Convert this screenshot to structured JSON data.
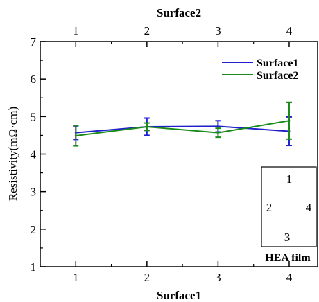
{
  "chart_data": {
    "type": "line",
    "xlabel": "Surface1",
    "x2label": "Surface2",
    "ylabel": "Resistivity(mΩ·cm)",
    "x": [
      1,
      2,
      3,
      4
    ],
    "x_ticks": [
      "1",
      "2",
      "3",
      "4"
    ],
    "x2_ticks": [
      "1",
      "2",
      "3",
      "4"
    ],
    "y_ticks": [
      "1",
      "2",
      "3",
      "4",
      "5",
      "6",
      "7"
    ],
    "xlim": [
      0.5,
      4.4
    ],
    "ylim": [
      1,
      7
    ],
    "series": [
      {
        "name": "Surface1",
        "color": "#1f1fcc",
        "values": [
          4.57,
          4.73,
          4.74,
          4.61
        ],
        "errors": [
          0.18,
          0.23,
          0.15,
          0.38
        ]
      },
      {
        "name": "Surface2",
        "color": "#1a8a1a",
        "values": [
          4.49,
          4.73,
          4.57,
          4.89
        ],
        "errors": [
          0.27,
          0.1,
          0.12,
          0.49
        ]
      }
    ],
    "legend_position": "top-right",
    "inset": {
      "labels": [
        "1",
        "2",
        "3",
        "4"
      ],
      "caption": "HEA film"
    }
  }
}
